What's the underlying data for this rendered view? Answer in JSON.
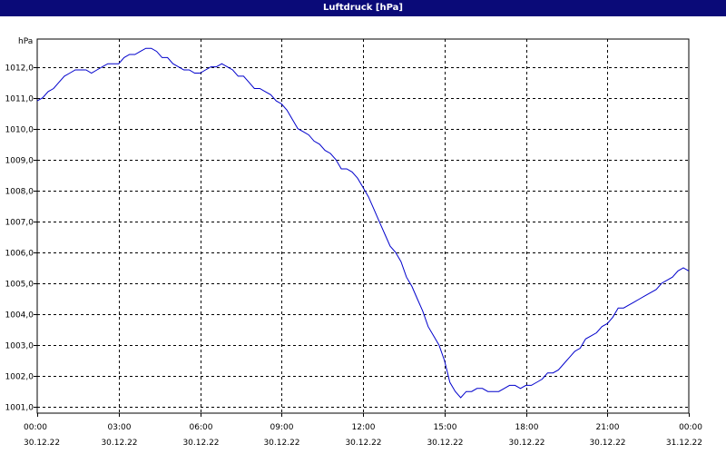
{
  "window": {
    "title": "Luftdruck [hPa]"
  },
  "colors": {
    "title_bar": "#0a0a78",
    "title_text": "#ffffff",
    "series_line": "#0000cc",
    "grid": "#000000",
    "background": "#ffffff"
  },
  "chart_data": {
    "type": "line",
    "title": "Luftdruck [hPa]",
    "ylabel": "hPa",
    "xlabel": "",
    "grid": true,
    "xlim_hours": [
      0,
      24
    ],
    "ylim": [
      1000.8,
      1012.9
    ],
    "y_ticks": [
      {
        "value": 1001.0,
        "label": "1001,0"
      },
      {
        "value": 1002.0,
        "label": "1002,0"
      },
      {
        "value": 1003.0,
        "label": "1003,0"
      },
      {
        "value": 1004.0,
        "label": "1004,0"
      },
      {
        "value": 1005.0,
        "label": "1005,0"
      },
      {
        "value": 1006.0,
        "label": "1006,0"
      },
      {
        "value": 1007.0,
        "label": "1007,0"
      },
      {
        "value": 1008.0,
        "label": "1008,0"
      },
      {
        "value": 1009.0,
        "label": "1009,0"
      },
      {
        "value": 1010.0,
        "label": "1010,0"
      },
      {
        "value": 1011.0,
        "label": "1011,0"
      },
      {
        "value": 1012.0,
        "label": "1012,0"
      }
    ],
    "x_ticks": [
      {
        "hour": 0,
        "time": "00:00",
        "date": "30.12.22"
      },
      {
        "hour": 3,
        "time": "03:00",
        "date": "30.12.22"
      },
      {
        "hour": 6,
        "time": "06:00",
        "date": "30.12.22"
      },
      {
        "hour": 9,
        "time": "09:00",
        "date": "30.12.22"
      },
      {
        "hour": 12,
        "time": "12:00",
        "date": "30.12.22"
      },
      {
        "hour": 15,
        "time": "15:00",
        "date": "30.12.22"
      },
      {
        "hour": 18,
        "time": "18:00",
        "date": "30.12.22"
      },
      {
        "hour": 21,
        "time": "21:00",
        "date": "30.12.22"
      },
      {
        "hour": 24,
        "time": "00:00",
        "date": "31.12.22"
      }
    ],
    "series": [
      {
        "points": [
          [
            0.0,
            1010.9
          ],
          [
            0.2,
            1011.0
          ],
          [
            0.4,
            1011.2
          ],
          [
            0.6,
            1011.3
          ],
          [
            0.8,
            1011.5
          ],
          [
            1.0,
            1011.7
          ],
          [
            1.2,
            1011.8
          ],
          [
            1.4,
            1011.9
          ],
          [
            1.6,
            1011.9
          ],
          [
            1.8,
            1011.9
          ],
          [
            2.0,
            1011.8
          ],
          [
            2.2,
            1011.9
          ],
          [
            2.4,
            1012.0
          ],
          [
            2.6,
            1012.1
          ],
          [
            2.8,
            1012.1
          ],
          [
            3.0,
            1012.1
          ],
          [
            3.2,
            1012.3
          ],
          [
            3.4,
            1012.4
          ],
          [
            3.6,
            1012.4
          ],
          [
            3.8,
            1012.5
          ],
          [
            4.0,
            1012.6
          ],
          [
            4.2,
            1012.6
          ],
          [
            4.4,
            1012.5
          ],
          [
            4.6,
            1012.3
          ],
          [
            4.8,
            1012.3
          ],
          [
            5.0,
            1012.1
          ],
          [
            5.2,
            1012.0
          ],
          [
            5.4,
            1011.9
          ],
          [
            5.6,
            1011.9
          ],
          [
            5.8,
            1011.8
          ],
          [
            6.0,
            1011.8
          ],
          [
            6.2,
            1011.9
          ],
          [
            6.4,
            1012.0
          ],
          [
            6.6,
            1012.0
          ],
          [
            6.8,
            1012.1
          ],
          [
            7.0,
            1012.0
          ],
          [
            7.2,
            1011.9
          ],
          [
            7.4,
            1011.7
          ],
          [
            7.6,
            1011.7
          ],
          [
            7.8,
            1011.5
          ],
          [
            8.0,
            1011.3
          ],
          [
            8.2,
            1011.3
          ],
          [
            8.4,
            1011.2
          ],
          [
            8.6,
            1011.1
          ],
          [
            8.8,
            1010.9
          ],
          [
            9.0,
            1010.8
          ],
          [
            9.2,
            1010.6
          ],
          [
            9.4,
            1010.3
          ],
          [
            9.6,
            1010.0
          ],
          [
            9.8,
            1009.9
          ],
          [
            10.0,
            1009.8
          ],
          [
            10.2,
            1009.6
          ],
          [
            10.4,
            1009.5
          ],
          [
            10.6,
            1009.3
          ],
          [
            10.8,
            1009.2
          ],
          [
            11.0,
            1009.0
          ],
          [
            11.2,
            1008.7
          ],
          [
            11.4,
            1008.7
          ],
          [
            11.6,
            1008.6
          ],
          [
            11.8,
            1008.4
          ],
          [
            12.0,
            1008.1
          ],
          [
            12.2,
            1007.8
          ],
          [
            12.4,
            1007.4
          ],
          [
            12.6,
            1007.0
          ],
          [
            12.8,
            1006.6
          ],
          [
            13.0,
            1006.2
          ],
          [
            13.2,
            1006.0
          ],
          [
            13.4,
            1005.7
          ],
          [
            13.6,
            1005.2
          ],
          [
            13.8,
            1004.9
          ],
          [
            14.0,
            1004.5
          ],
          [
            14.2,
            1004.1
          ],
          [
            14.4,
            1003.6
          ],
          [
            14.6,
            1003.3
          ],
          [
            14.8,
            1003.0
          ],
          [
            15.0,
            1002.5
          ],
          [
            15.2,
            1001.8
          ],
          [
            15.4,
            1001.5
          ],
          [
            15.6,
            1001.3
          ],
          [
            15.8,
            1001.5
          ],
          [
            16.0,
            1001.5
          ],
          [
            16.2,
            1001.6
          ],
          [
            16.4,
            1001.6
          ],
          [
            16.6,
            1001.5
          ],
          [
            16.8,
            1001.5
          ],
          [
            17.0,
            1001.5
          ],
          [
            17.2,
            1001.6
          ],
          [
            17.4,
            1001.7
          ],
          [
            17.6,
            1001.7
          ],
          [
            17.8,
            1001.6
          ],
          [
            18.0,
            1001.7
          ],
          [
            18.2,
            1001.7
          ],
          [
            18.4,
            1001.8
          ],
          [
            18.6,
            1001.9
          ],
          [
            18.8,
            1002.1
          ],
          [
            19.0,
            1002.1
          ],
          [
            19.2,
            1002.2
          ],
          [
            19.4,
            1002.4
          ],
          [
            19.6,
            1002.6
          ],
          [
            19.8,
            1002.8
          ],
          [
            20.0,
            1002.9
          ],
          [
            20.2,
            1003.2
          ],
          [
            20.4,
            1003.3
          ],
          [
            20.6,
            1003.4
          ],
          [
            20.8,
            1003.6
          ],
          [
            21.0,
            1003.7
          ],
          [
            21.2,
            1003.9
          ],
          [
            21.4,
            1004.2
          ],
          [
            21.6,
            1004.2
          ],
          [
            21.8,
            1004.3
          ],
          [
            22.0,
            1004.4
          ],
          [
            22.2,
            1004.5
          ],
          [
            22.4,
            1004.6
          ],
          [
            22.6,
            1004.7
          ],
          [
            22.8,
            1004.8
          ],
          [
            23.0,
            1005.0
          ],
          [
            23.2,
            1005.1
          ],
          [
            23.4,
            1005.2
          ],
          [
            23.6,
            1005.4
          ],
          [
            23.8,
            1005.5
          ],
          [
            24.0,
            1005.4
          ]
        ]
      }
    ]
  }
}
